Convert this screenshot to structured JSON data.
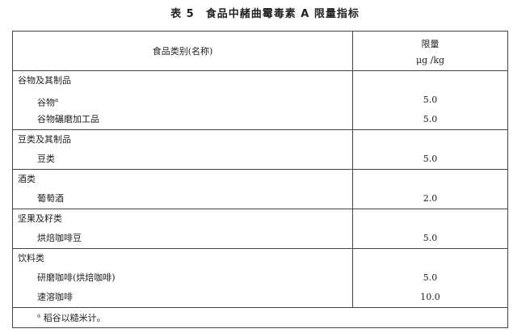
{
  "title": "表 5　食品中赭曲霉毒素 A 限量指标",
  "header": {
    "category": "食品类别(名称)",
    "limit": "限量",
    "unit": "μg /kg"
  },
  "groups": [
    {
      "name": "谷物及其制品",
      "items": [
        {
          "name": "谷物",
          "mark": "a",
          "value": "5.0"
        },
        {
          "name": "谷物碾磨加工品",
          "value": "5.0"
        }
      ]
    },
    {
      "name": "豆类及其制品",
      "items": [
        {
          "name": "豆类",
          "value": "5.0"
        }
      ]
    },
    {
      "name": "酒类",
      "items": [
        {
          "name": "葡萄酒",
          "value": "2.0"
        }
      ]
    },
    {
      "name": "坚果及籽类",
      "items": [
        {
          "name": "烘焙咖啡豆",
          "value": "5.0"
        }
      ]
    },
    {
      "name": "饮料类",
      "items": [
        {
          "name": "研磨咖啡(烘焙咖啡)",
          "value": "5.0"
        },
        {
          "name": "速溶咖啡",
          "value": "10.0"
        }
      ]
    }
  ],
  "footnote": {
    "mark": "a",
    "text": "稻谷以糙米计。"
  }
}
